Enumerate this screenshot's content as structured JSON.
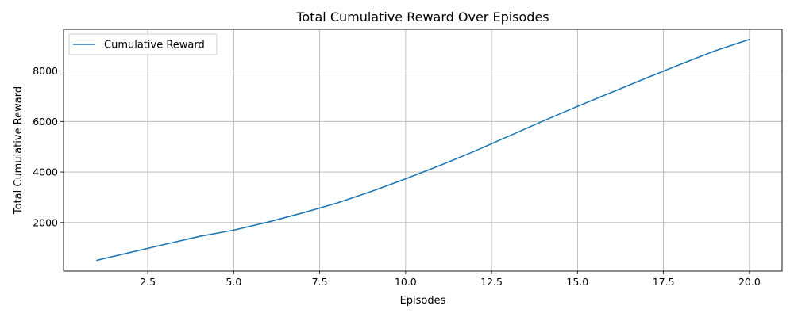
{
  "chart_data": {
    "type": "line",
    "title": "Total Cumulative Reward Over Episodes",
    "xlabel": "Episodes",
    "ylabel": "Total Cumulative Reward",
    "xlim": [
      0.05,
      20.95
    ],
    "ylim": [
      80,
      9650
    ],
    "xticks": [
      2.5,
      5.0,
      7.5,
      10.0,
      12.5,
      15.0,
      17.5,
      20.0
    ],
    "xtick_labels": [
      "2.5",
      "5.0",
      "7.5",
      "10.0",
      "12.5",
      "15.0",
      "17.5",
      "20.0"
    ],
    "yticks": [
      2000,
      4000,
      6000,
      8000
    ],
    "ytick_labels": [
      "2000",
      "4000",
      "6000",
      "8000"
    ],
    "grid": true,
    "legend": "top-left",
    "series": [
      {
        "name": "Cumulative Reward",
        "color": "#1f77b4",
        "x": [
          1,
          2,
          3,
          4,
          5,
          6,
          7,
          8,
          9,
          10,
          11,
          12,
          13,
          14,
          15,
          16,
          17,
          18,
          19,
          20
        ],
        "values": [
          500,
          820,
          1140,
          1450,
          1700,
          2020,
          2380,
          2770,
          3230,
          3730,
          4260,
          4820,
          5420,
          6020,
          6600,
          7160,
          7720,
          8270,
          8800,
          9250
        ]
      }
    ]
  }
}
